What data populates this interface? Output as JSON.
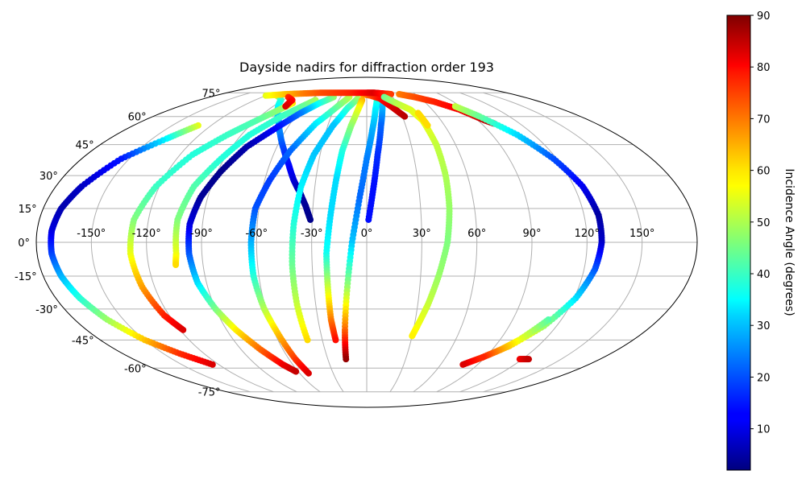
{
  "chart_data": {
    "type": "scatter",
    "projection": "mollweide",
    "title": "Dayside nadirs for diffraction order 193",
    "lon_ticks": [
      -150,
      -120,
      -90,
      -60,
      -30,
      0,
      30,
      60,
      90,
      120,
      150
    ],
    "lon_tick_labels": [
      "-150°",
      "-120°",
      "-90°",
      "-60°",
      "-30°",
      "0°",
      "30°",
      "60°",
      "90°",
      "120°",
      "150°"
    ],
    "lat_ticks": [
      75,
      60,
      45,
      30,
      15,
      0,
      -15,
      -30,
      -45,
      -60,
      -75
    ],
    "lat_tick_labels": [
      "75°",
      "60°",
      "45°",
      "30°",
      "15°",
      "0°",
      "-15°",
      "-30°",
      "-45°",
      "-60°",
      "-75°"
    ],
    "grid": true,
    "colorbar": {
      "label": "Incidence Angle (degrees)",
      "range": [
        2,
        90
      ],
      "ticks": [
        10,
        20,
        30,
        40,
        50,
        60,
        70,
        80,
        90
      ],
      "tick_labels": [
        "10",
        "20",
        "30",
        "40",
        "50",
        "60",
        "70",
        "80",
        "90"
      ],
      "colormap": "jet"
    },
    "tracks": [
      {
        "points": [
          [
            -107,
            73,
            58
          ],
          [
            -100,
            72,
            48
          ],
          [
            -92,
            70,
            40
          ],
          [
            -85,
            66,
            36
          ],
          [
            -78,
            62,
            32
          ],
          [
            -70,
            57,
            28
          ],
          [
            -62,
            50,
            24
          ],
          [
            -55,
            43,
            19
          ],
          [
            -48,
            35,
            14
          ],
          [
            -43,
            28,
            10
          ],
          [
            -38,
            22,
            6
          ],
          [
            -34,
            16,
            4
          ],
          [
            -31,
            10,
            3
          ]
        ]
      },
      {
        "points": [
          [
            -130,
            55,
            55
          ],
          [
            -140,
            48,
            35
          ],
          [
            -155,
            38,
            15
          ],
          [
            -165,
            25,
            8
          ],
          [
            -170,
            15,
            6
          ],
          [
            -172,
            5,
            10
          ],
          [
            -172,
            -5,
            18
          ],
          [
            -170,
            -15,
            28
          ],
          [
            -166,
            -25,
            38
          ],
          [
            -160,
            -35,
            48
          ],
          [
            -150,
            -45,
            62
          ],
          [
            -138,
            -52,
            75
          ],
          [
            -125,
            -58,
            82
          ]
        ]
      },
      {
        "points": [
          [
            -75,
            68,
            60
          ],
          [
            -80,
            64,
            48
          ],
          [
            -90,
            57,
            42
          ],
          [
            -100,
            50,
            40
          ],
          [
            -112,
            40,
            38
          ],
          [
            -122,
            25,
            40
          ],
          [
            -128,
            10,
            46
          ],
          [
            -129,
            -5,
            55
          ],
          [
            -127,
            -20,
            65
          ],
          [
            -123,
            -33,
            76
          ],
          [
            -118,
            -40,
            82
          ]
        ]
      },
      {
        "points": [
          [
            -55,
            70,
            50
          ],
          [
            -62,
            66,
            44
          ],
          [
            -72,
            60,
            40
          ],
          [
            -84,
            50,
            38
          ],
          [
            -92,
            38,
            38
          ],
          [
            -100,
            25,
            42
          ],
          [
            -104,
            10,
            46
          ],
          [
            -104,
            -5,
            55
          ],
          [
            -105,
            -10,
            60
          ]
        ]
      },
      {
        "points": [
          [
            -38,
            72,
            48
          ],
          [
            -48,
            68,
            38
          ],
          [
            -58,
            62,
            24
          ],
          [
            -68,
            54,
            14
          ],
          [
            -80,
            44,
            6
          ],
          [
            -88,
            32,
            3
          ],
          [
            -94,
            20,
            4
          ],
          [
            -97,
            8,
            10
          ],
          [
            -97,
            -5,
            20
          ],
          [
            -95,
            -18,
            32
          ],
          [
            -90,
            -30,
            45
          ],
          [
            -84,
            -40,
            58
          ],
          [
            -76,
            -50,
            70
          ],
          [
            -68,
            -58,
            80
          ],
          [
            -62,
            -62,
            84
          ]
        ]
      },
      {
        "points": [
          [
            -20,
            72,
            52
          ],
          [
            -28,
            66,
            45
          ],
          [
            -40,
            56,
            34
          ],
          [
            -50,
            42,
            22
          ],
          [
            -57,
            28,
            18
          ],
          [
            -62,
            15,
            20
          ],
          [
            -63,
            0,
            28
          ],
          [
            -63,
            -15,
            38
          ],
          [
            -61,
            -30,
            50
          ],
          [
            -58,
            -42,
            62
          ],
          [
            -55,
            -55,
            74
          ],
          [
            -52,
            -63,
            82
          ]
        ]
      },
      {
        "points": [
          [
            -10,
            71,
            50
          ],
          [
            -18,
            65,
            40
          ],
          [
            -26,
            55,
            30
          ],
          [
            -34,
            40,
            30
          ],
          [
            -38,
            25,
            34
          ],
          [
            -40,
            8,
            38
          ],
          [
            -41,
            -10,
            44
          ],
          [
            -41,
            -28,
            52
          ],
          [
            -40,
            -45,
            60
          ]
        ]
      },
      {
        "points": [
          [
            -5,
            70,
            64
          ],
          [
            -8,
            64,
            56
          ],
          [
            -12,
            55,
            48
          ],
          [
            -16,
            42,
            38
          ],
          [
            -18,
            28,
            32
          ],
          [
            -20,
            12,
            32
          ],
          [
            -22,
            -5,
            36
          ],
          [
            -22,
            -20,
            52
          ],
          [
            -22,
            -35,
            68
          ],
          [
            -21,
            -45,
            78
          ]
        ]
      },
      {
        "points": [
          [
            12,
            72,
            40
          ],
          [
            8,
            64,
            34
          ],
          [
            4,
            52,
            28
          ],
          [
            0,
            38,
            24
          ],
          [
            -4,
            20,
            22
          ],
          [
            -8,
            0,
            30
          ],
          [
            -11,
            -20,
            48
          ],
          [
            -14,
            -40,
            70
          ],
          [
            -16,
            -55,
            88
          ]
        ]
      },
      {
        "points": [
          [
            20,
            73,
            42
          ],
          [
            15,
            66,
            30
          ],
          [
            11,
            55,
            22
          ],
          [
            7,
            40,
            17
          ],
          [
            4,
            25,
            14
          ],
          [
            1,
            10,
            14
          ]
        ]
      },
      {
        "points": [
          [
            -5,
            74,
            62
          ],
          [
            5,
            73,
            72
          ],
          [
            15,
            71,
            78
          ],
          [
            25,
            65,
            82
          ],
          [
            32,
            60,
            85
          ]
        ]
      },
      {
        "points": [
          [
            -120,
            73,
            55
          ],
          [
            -100,
            74,
            62
          ],
          [
            -80,
            74.5,
            68
          ],
          [
            -60,
            75,
            72
          ],
          [
            -40,
            75,
            74
          ],
          [
            -20,
            75,
            76
          ],
          [
            0,
            75,
            80
          ],
          [
            10,
            75,
            82
          ],
          [
            20,
            74.5,
            78
          ],
          [
            30,
            74,
            74
          ]
        ]
      },
      {
        "points": [
          [
            -90,
            72,
            75
          ],
          [
            -80,
            70,
            78
          ],
          [
            -78,
            66,
            82
          ]
        ]
      },
      {
        "points": [
          [
            20,
            72,
            44
          ],
          [
            30,
            68,
            50
          ],
          [
            40,
            64,
            54
          ],
          [
            45,
            58,
            56
          ],
          [
            47,
            45,
            52
          ],
          [
            47,
            30,
            50
          ],
          [
            46,
            15,
            48
          ],
          [
            44,
            0,
            46
          ],
          [
            40,
            -15,
            48
          ],
          [
            36,
            -28,
            52
          ],
          [
            32,
            -38,
            56
          ],
          [
            30,
            -43,
            58
          ]
        ]
      },
      {
        "points": [
          [
            45,
            62,
            60
          ],
          [
            47,
            55,
            60
          ]
        ]
      },
      {
        "points": [
          [
            40,
            74,
            68
          ],
          [
            55,
            72,
            72
          ],
          [
            70,
            69,
            76
          ],
          [
            85,
            64,
            80
          ],
          [
            95,
            58,
            84
          ],
          [
            100,
            56,
            86
          ]
        ]
      },
      {
        "points": [
          [
            85,
            66,
            52
          ],
          [
            95,
            60,
            44
          ],
          [
            108,
            50,
            32
          ],
          [
            118,
            38,
            20
          ],
          [
            125,
            25,
            12
          ],
          [
            128,
            12,
            5
          ],
          [
            128,
            0,
            8
          ],
          [
            126,
            -12,
            20
          ],
          [
            121,
            -25,
            32
          ],
          [
            112,
            -38,
            48
          ],
          [
            100,
            -48,
            62
          ],
          [
            88,
            -54,
            74
          ],
          [
            78,
            -58,
            82
          ]
        ]
      },
      {
        "points": [
          [
            112,
            -35,
            42
          ],
          [
            103,
            -45,
            55
          ],
          [
            96,
            -50,
            65
          ],
          [
            88,
            -54,
            76
          ]
        ]
      },
      {
        "points": [
          [
            118,
            -55,
            80
          ],
          [
            125,
            -55,
            84
          ]
        ]
      }
    ]
  }
}
